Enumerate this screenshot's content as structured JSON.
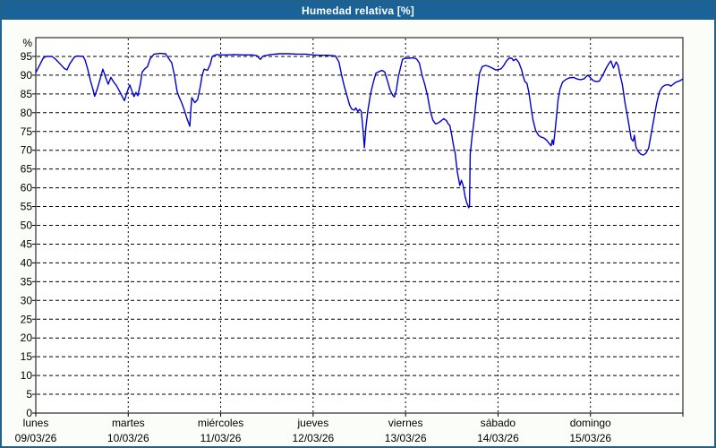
{
  "window": {
    "title": "Humedad relativa [%]",
    "title_bar_color": "#1b6396",
    "border_color": "#23618d",
    "background_color": "#fbfdf8"
  },
  "chart_data": {
    "type": "line",
    "title": "Humedad relativa [%]",
    "ylabel_unit": "%",
    "ylim": [
      0,
      100
    ],
    "ytick_step": 5,
    "ytick_labels": [
      "0",
      "5",
      "10",
      "15",
      "20",
      "25",
      "30",
      "35",
      "40",
      "45",
      "50",
      "55",
      "60",
      "65",
      "70",
      "75",
      "80",
      "85",
      "90",
      "95"
    ],
    "x_range_hours": [
      0,
      168
    ],
    "grid": "dashed",
    "legend": "none",
    "plot_bg": "#ffffff",
    "grid_color": "#000000",
    "line_color": "#0000cc",
    "days": [
      {
        "name": "lunes",
        "date": "09/03/26"
      },
      {
        "name": "martes",
        "date": "10/03/26"
      },
      {
        "name": "miércoles",
        "date": "11/03/26"
      },
      {
        "name": "jueves",
        "date": "12/03/26"
      },
      {
        "name": "viernes",
        "date": "13/03/26"
      },
      {
        "name": "sábado",
        "date": "14/03/26"
      },
      {
        "name": "domingo",
        "date": "15/03/26"
      }
    ],
    "series": [
      {
        "name": "Humedad relativa",
        "points_hour_value": [
          [
            0,
            90.7
          ],
          [
            0.9,
            92.5
          ],
          [
            1.9,
            94.5
          ],
          [
            2.6,
            95
          ],
          [
            4.2,
            95
          ],
          [
            5.1,
            94.3
          ],
          [
            6.5,
            92.8
          ],
          [
            7.4,
            91.8
          ],
          [
            8.1,
            91.4
          ],
          [
            8.8,
            93
          ],
          [
            10,
            94.8
          ],
          [
            10.7,
            95.1
          ],
          [
            12.3,
            95
          ],
          [
            12.8,
            94
          ],
          [
            13.5,
            91.5
          ],
          [
            14.2,
            88.5
          ],
          [
            14.9,
            86
          ],
          [
            15.3,
            84.4
          ],
          [
            16,
            86.5
          ],
          [
            16.7,
            89
          ],
          [
            17.4,
            91.6
          ],
          [
            18.1,
            89.5
          ],
          [
            18.8,
            87.6
          ],
          [
            19.5,
            89.4
          ],
          [
            20.2,
            88.2
          ],
          [
            20.9,
            87.3
          ],
          [
            21.8,
            85.6
          ],
          [
            23,
            83.2
          ],
          [
            23.7,
            85.5
          ],
          [
            24.4,
            87.4
          ],
          [
            25.1,
            85.4
          ],
          [
            25.5,
            84.3
          ],
          [
            26,
            85.4
          ],
          [
            26.5,
            84.5
          ],
          [
            27.2,
            88
          ],
          [
            27.6,
            90.8
          ],
          [
            28.3,
            91.7
          ],
          [
            29,
            92.3
          ],
          [
            29.7,
            94.4
          ],
          [
            30.7,
            95.6
          ],
          [
            32.3,
            95.8
          ],
          [
            33.7,
            95.7
          ],
          [
            34.6,
            94.3
          ],
          [
            35.3,
            93.3
          ],
          [
            36,
            90
          ],
          [
            36.7,
            85.6
          ],
          [
            37.2,
            84.2
          ],
          [
            37.9,
            82.6
          ],
          [
            38.6,
            80.6
          ],
          [
            39.2,
            78.6
          ],
          [
            40,
            76.4
          ],
          [
            40.2,
            80
          ],
          [
            40.5,
            84
          ],
          [
            41.3,
            82.7
          ],
          [
            42,
            83.5
          ],
          [
            42.7,
            87
          ],
          [
            43.2,
            90
          ],
          [
            43.7,
            91.6
          ],
          [
            44.6,
            91.3
          ],
          [
            45.3,
            93
          ],
          [
            45.8,
            95
          ],
          [
            46.9,
            95.5
          ],
          [
            48.1,
            95.4
          ],
          [
            49.7,
            95.4
          ],
          [
            51.6,
            95.5
          ],
          [
            53.9,
            95.4
          ],
          [
            56.2,
            95.4
          ],
          [
            57.4,
            95.2
          ],
          [
            58.3,
            94.2
          ],
          [
            59,
            95.1
          ],
          [
            60.9,
            95.5
          ],
          [
            63.2,
            95.7
          ],
          [
            65.5,
            95.7
          ],
          [
            67.8,
            95.6
          ],
          [
            70.1,
            95.6
          ],
          [
            72,
            95.4
          ],
          [
            73.6,
            95.3
          ],
          [
            75.9,
            95.3
          ],
          [
            77.8,
            95.1
          ],
          [
            78.7,
            93.5
          ],
          [
            79.4,
            90
          ],
          [
            80.1,
            87
          ],
          [
            80.8,
            84.5
          ],
          [
            81.5,
            82
          ],
          [
            82,
            81
          ],
          [
            82.7,
            80.7
          ],
          [
            83.1,
            81.3
          ],
          [
            83.6,
            80.3
          ],
          [
            84.1,
            80.9
          ],
          [
            84.5,
            80.3
          ],
          [
            85,
            75
          ],
          [
            85.3,
            70.7
          ],
          [
            85.7,
            76
          ],
          [
            86.2,
            80.5
          ],
          [
            86.9,
            85
          ],
          [
            87.6,
            88
          ],
          [
            88.3,
            90.5
          ],
          [
            89.2,
            91
          ],
          [
            89.9,
            91.3
          ],
          [
            90.6,
            90.8
          ],
          [
            91.3,
            88.5
          ],
          [
            92,
            86
          ],
          [
            92.7,
            84.6
          ],
          [
            93.1,
            84.2
          ],
          [
            93.6,
            86
          ],
          [
            94.1,
            89.5
          ],
          [
            94.8,
            92.5
          ],
          [
            95.2,
            94.2
          ],
          [
            95.9,
            94.5
          ],
          [
            96.8,
            94.5
          ],
          [
            98,
            94.6
          ],
          [
            98.9,
            94.3
          ],
          [
            99.6,
            93.2
          ],
          [
            100.3,
            90
          ],
          [
            101,
            87.5
          ],
          [
            101.7,
            84.5
          ],
          [
            102.4,
            80.5
          ],
          [
            103.1,
            78
          ],
          [
            103.8,
            77
          ],
          [
            104.5,
            77.3
          ],
          [
            105.2,
            77.8
          ],
          [
            105.9,
            78.4
          ],
          [
            106.6,
            77.9
          ],
          [
            107.1,
            77
          ],
          [
            107.5,
            76.6
          ],
          [
            108,
            74
          ],
          [
            108.4,
            71.5
          ],
          [
            108.9,
            69
          ],
          [
            109.4,
            64.5
          ],
          [
            110.1,
            60.6
          ],
          [
            110.5,
            62
          ],
          [
            111,
            60.4
          ],
          [
            111.5,
            57.5
          ],
          [
            111.9,
            56
          ],
          [
            112.4,
            54.7
          ],
          [
            112.6,
            55.2
          ],
          [
            112.8,
            69
          ],
          [
            113.3,
            74
          ],
          [
            113.8,
            78
          ],
          [
            114.5,
            85
          ],
          [
            115.2,
            90.5
          ],
          [
            115.9,
            92.3
          ],
          [
            116.8,
            92.6
          ],
          [
            117.7,
            92.3
          ],
          [
            118.7,
            91.8
          ],
          [
            119.4,
            91.4
          ],
          [
            120.1,
            91.5
          ],
          [
            120.8,
            91.7
          ],
          [
            121.5,
            92.6
          ],
          [
            122.2,
            93.8
          ],
          [
            122.9,
            94.5
          ],
          [
            123.6,
            94.5
          ],
          [
            124,
            93.9
          ],
          [
            124.7,
            94.3
          ],
          [
            125.4,
            93.4
          ],
          [
            126.1,
            91.5
          ],
          [
            126.6,
            89.5
          ],
          [
            127,
            88.2
          ],
          [
            127.5,
            87.9
          ],
          [
            128,
            85.5
          ],
          [
            128.7,
            80.5
          ],
          [
            129.1,
            78
          ],
          [
            129.8,
            75.2
          ],
          [
            130.5,
            74
          ],
          [
            131.2,
            73.5
          ],
          [
            131.9,
            73.3
          ],
          [
            132.6,
            72.7
          ],
          [
            133.3,
            71.8
          ],
          [
            133.8,
            71.2
          ],
          [
            134.1,
            72.8
          ],
          [
            134.4,
            71.5
          ],
          [
            134.7,
            74
          ],
          [
            135.2,
            79
          ],
          [
            135.6,
            83.5
          ],
          [
            136.1,
            86.3
          ],
          [
            136.8,
            88.2
          ],
          [
            137.7,
            88.9
          ],
          [
            138.6,
            89.3
          ],
          [
            139.6,
            89.4
          ],
          [
            140.5,
            89
          ],
          [
            141.4,
            88.8
          ],
          [
            142.3,
            89
          ],
          [
            143.3,
            90
          ],
          [
            144,
            89.3
          ],
          [
            144.7,
            88.6
          ],
          [
            145.4,
            88.3
          ],
          [
            146.3,
            88.4
          ],
          [
            147.2,
            90
          ],
          [
            147.9,
            91.5
          ],
          [
            148.6,
            92.8
          ],
          [
            149.3,
            93.8
          ],
          [
            150,
            91.9
          ],
          [
            150.7,
            93.5
          ],
          [
            151.2,
            92.6
          ],
          [
            151.6,
            90.5
          ],
          [
            152.3,
            87.5
          ],
          [
            153,
            82.5
          ],
          [
            153.7,
            78.5
          ],
          [
            154.2,
            75.5
          ],
          [
            154.6,
            73
          ],
          [
            155.1,
            72.4
          ],
          [
            155.4,
            74
          ],
          [
            155.8,
            71
          ],
          [
            156.3,
            69.8
          ],
          [
            157,
            69
          ],
          [
            157.7,
            68.7
          ],
          [
            158.4,
            69.2
          ],
          [
            159.1,
            70.5
          ],
          [
            159.8,
            74.5
          ],
          [
            160.5,
            78.5
          ],
          [
            161.2,
            82.5
          ],
          [
            161.9,
            85.5
          ],
          [
            162.6,
            86.8
          ],
          [
            163.3,
            87.3
          ],
          [
            164.2,
            87.5
          ],
          [
            164.9,
            87.1
          ],
          [
            165.6,
            87.7
          ],
          [
            166.3,
            88.2
          ],
          [
            167.2,
            88.5
          ],
          [
            168,
            89
          ]
        ]
      }
    ]
  }
}
